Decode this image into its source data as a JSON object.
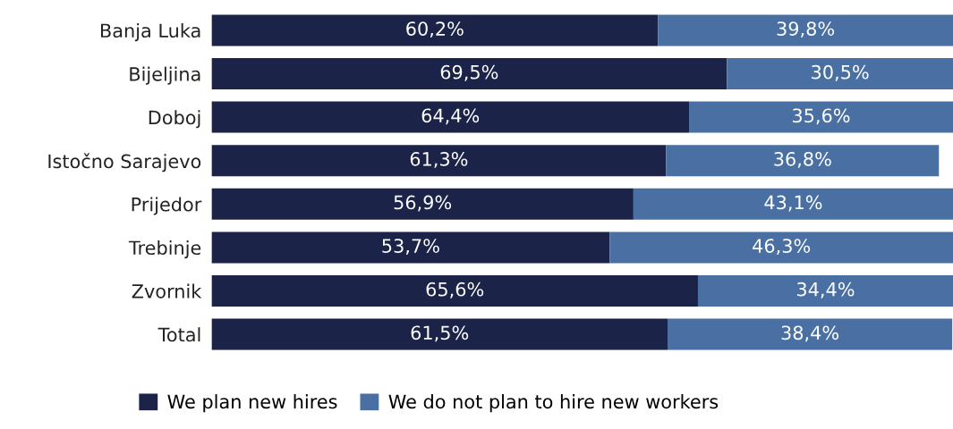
{
  "chart_data": {
    "type": "bar",
    "orientation": "horizontal",
    "stacked": true,
    "categories": [
      "Banja Luka",
      "Bijeljina",
      "Doboj",
      "Istočno Sarajevo",
      "Prijedor",
      "Trebinje",
      "Zvornik",
      "Total"
    ],
    "xlim": [
      0,
      100
    ],
    "tick_labels": "y",
    "grid": false,
    "legend": "bottom",
    "series": [
      {
        "name": "We plan new hires",
        "color": "#1b2448",
        "values": [
          60.2,
          69.5,
          64.4,
          61.3,
          56.9,
          53.7,
          65.6,
          61.5
        ],
        "value_labels": [
          "60,2%",
          "69,5%",
          "64,4%",
          "61,3%",
          "56,9%",
          "53,7%",
          "65,6%",
          "61,5%"
        ]
      },
      {
        "name": "We do not plan to hire new workers",
        "color": "#4a70a3",
        "values": [
          39.8,
          30.5,
          35.6,
          36.8,
          43.1,
          46.3,
          34.4,
          38.4
        ],
        "value_labels": [
          "39,8%",
          "30,5%",
          "35,6%",
          "36,8%",
          "43,1%",
          "46,3%",
          "34,4%",
          "38,4%"
        ]
      }
    ]
  }
}
